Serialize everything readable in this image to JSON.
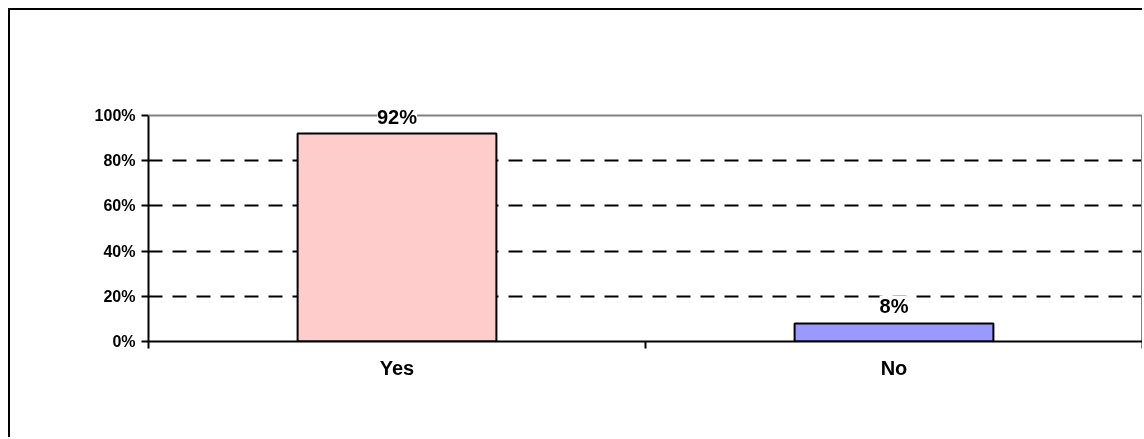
{
  "chart_data": {
    "type": "bar",
    "categories": [
      "Yes",
      "No"
    ],
    "values": [
      92,
      8
    ],
    "colors": [
      "#ffcccc",
      "#9999ff"
    ],
    "value_labels": [
      "92%",
      "8%"
    ],
    "ylim": [
      0,
      100
    ],
    "yticks": [
      {
        "value": 0,
        "label": "0%"
      },
      {
        "value": 20,
        "label": "20%"
      },
      {
        "value": 40,
        "label": "40%"
      },
      {
        "value": 60,
        "label": "60%"
      },
      {
        "value": 80,
        "label": "80%"
      },
      {
        "value": 100,
        "label": "100%"
      }
    ],
    "grid": "y"
  }
}
